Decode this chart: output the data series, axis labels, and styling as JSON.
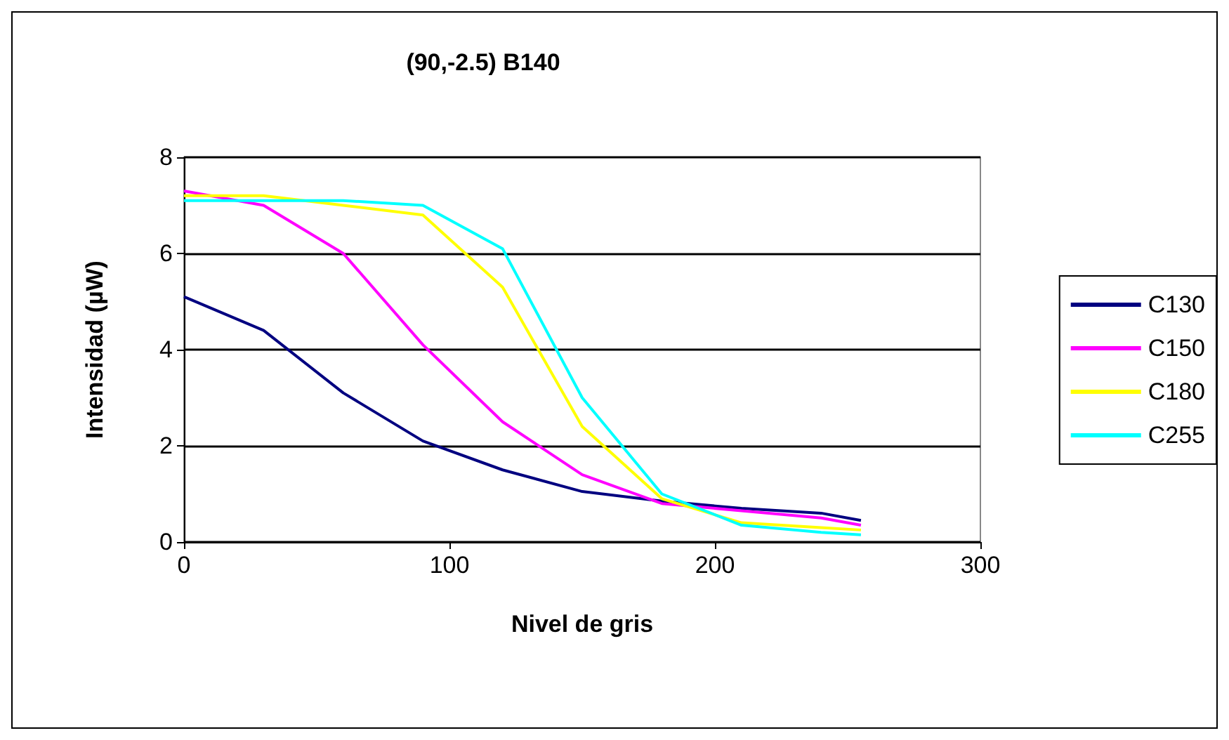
{
  "chart_data": {
    "type": "line",
    "title": "(90,-2.5) B140",
    "xlabel": "Nivel de gris",
    "ylabel": "Intensidad (µW)",
    "x": [
      0,
      30,
      60,
      90,
      120,
      150,
      180,
      210,
      240,
      255
    ],
    "series": [
      {
        "name": "C130",
        "color": "#000080",
        "values": [
          5.1,
          4.4,
          3.1,
          2.1,
          1.5,
          1.05,
          0.85,
          0.7,
          0.6,
          0.45
        ]
      },
      {
        "name": "C150",
        "color": "#ff00ff",
        "values": [
          7.3,
          7.0,
          6.0,
          4.1,
          2.5,
          1.4,
          0.8,
          0.65,
          0.5,
          0.35
        ]
      },
      {
        "name": "C180",
        "color": "#ffff00",
        "values": [
          7.2,
          7.2,
          7.0,
          6.8,
          5.3,
          2.4,
          0.9,
          0.4,
          0.3,
          0.25
        ]
      },
      {
        "name": "C255",
        "color": "#00ffff",
        "values": [
          7.1,
          7.1,
          7.1,
          7.0,
          6.1,
          3.0,
          1.0,
          0.35,
          0.2,
          0.15
        ]
      }
    ],
    "xlim": [
      0,
      300
    ],
    "xticks": [
      0,
      100,
      200,
      300
    ],
    "ylim": [
      0,
      8
    ],
    "yticks": [
      0,
      2,
      4,
      6,
      8
    ],
    "grid": "y",
    "legend": "right",
    "marker": "none",
    "line_style": "solid"
  }
}
